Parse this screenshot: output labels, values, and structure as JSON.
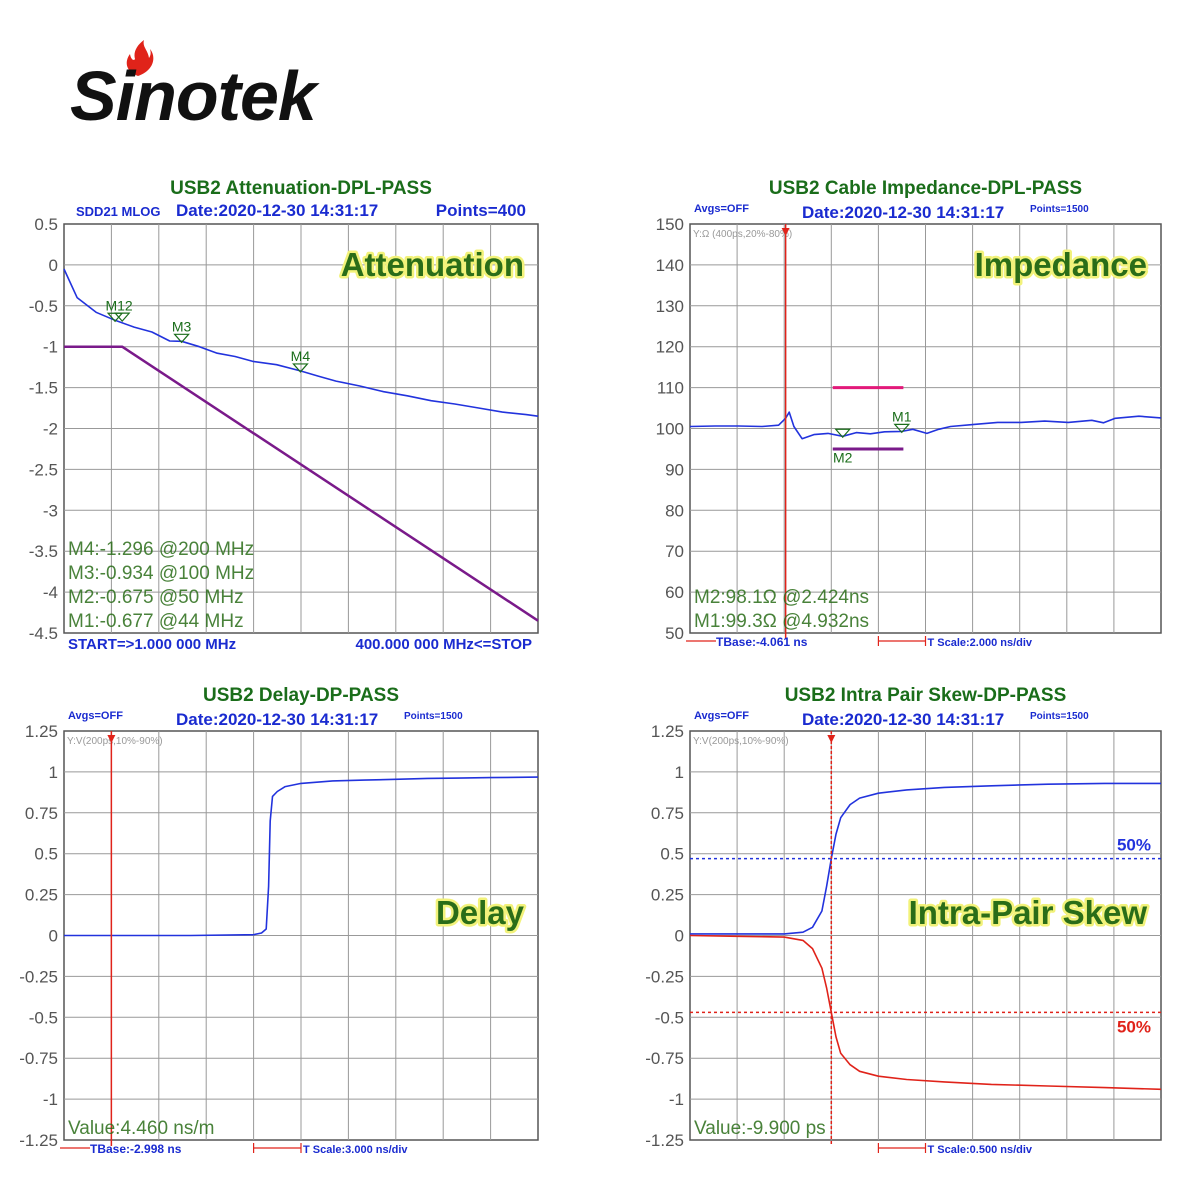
{
  "logo": {
    "brand": "Sinotek",
    "flame_color": "#e0231a"
  },
  "colors": {
    "title": "#1a6d1a",
    "meta": "#1a2bd0",
    "blue": "#2233dd",
    "purple": "#7a1a8a",
    "red": "#e0231a",
    "magenta": "#e21a7a",
    "marker_text": "#1a6d1a",
    "overlay_text": "#2a6d18",
    "overlay_glow": "#f2f27a"
  },
  "chart_data": [
    {
      "id": "attenuation",
      "type": "line",
      "title": "USB2 Attenuation-DPL-PASS",
      "top_left": "SDD21 MLOG",
      "date": "Date:2020-12-30 14:31:17",
      "points_label": "Points=400",
      "overlay_label": "Attenuation",
      "yticks": [
        "0.5",
        "0",
        "-0.5",
        "-1",
        "-1.5",
        "-2",
        "-2.5",
        "-3",
        "-3.5",
        "-4",
        "-4.5"
      ],
      "ylim": [
        -4.5,
        0.5
      ],
      "xlim": [
        1,
        400
      ],
      "series": [
        {
          "color": "#2233dd",
          "x": [
            1,
            12,
            28,
            44,
            60,
            75,
            90,
            100,
            115,
            130,
            145,
            160,
            180,
            200,
            215,
            230,
            250,
            270,
            290,
            310,
            330,
            350,
            370,
            390,
            400
          ],
          "y": [
            -0.05,
            -0.4,
            -0.58,
            -0.677,
            -0.76,
            -0.82,
            -0.93,
            -0.934,
            -1.0,
            -1.08,
            -1.12,
            -1.18,
            -1.22,
            -1.296,
            -1.36,
            -1.42,
            -1.48,
            -1.55,
            -1.6,
            -1.66,
            -1.7,
            -1.75,
            -1.8,
            -1.83,
            -1.85
          ]
        },
        {
          "color": "#7a1a8a",
          "x": [
            1,
            50,
            400
          ],
          "y": [
            -1.0,
            -1.0,
            -4.35
          ]
        }
      ],
      "markers": [
        {
          "label": "M1",
          "x": 44,
          "y": -0.677
        },
        {
          "label": "M2",
          "x": 50,
          "y": -0.675
        },
        {
          "label": "M3",
          "x": 100,
          "y": -0.934
        },
        {
          "label": "M4",
          "x": 200,
          "y": -1.296
        }
      ],
      "marker_caption": "M12",
      "readouts": [
        "M4:-1.296 @200 MHz",
        "M3:-0.934 @100 MHz",
        "M2:-0.675 @50 MHz",
        "M1:-0.677 @44 MHz"
      ],
      "bottom_left": "START=>1.000 000 MHz",
      "bottom_right": "400.000 000 MHz<=STOP"
    },
    {
      "id": "impedance",
      "type": "line",
      "title": "USB2 Cable Impedance-DPL-PASS",
      "avgs": "Avgs=OFF",
      "date": "Date:2020-12-30 14:31:17",
      "points_label": "Points=1500",
      "yaxis_note": "Y:Ω (400ps,20%-80%)",
      "overlay_label": "Impedance",
      "yticks": [
        "150",
        "140",
        "130",
        "120",
        "110",
        "100",
        "90",
        "80",
        "70",
        "60",
        "50"
      ],
      "ylim": [
        50,
        150
      ],
      "xlim": [
        -4.061,
        15.939
      ],
      "cursor_x": 0,
      "limit_lines": [
        {
          "color": "#e21a7a",
          "x0": 2.0,
          "x1": 5.0,
          "y": 110
        },
        {
          "color": "#7a1a8a",
          "x0": 2.0,
          "x1": 5.0,
          "y": 95
        }
      ],
      "series": [
        {
          "color": "#2233dd",
          "x": [
            -4.061,
            -3,
            -2,
            -1,
            -0.3,
            0,
            0.15,
            0.35,
            0.7,
            1.2,
            1.8,
            2.424,
            3,
            3.6,
            4.2,
            4.932,
            5.4,
            6,
            6.5,
            7,
            8,
            9,
            10,
            11,
            12,
            13,
            13.5,
            14,
            15,
            15.939
          ],
          "y": [
            100.5,
            100.6,
            100.6,
            100.5,
            100.8,
            102.5,
            104,
            100.5,
            97.5,
            98.5,
            98.8,
            98.1,
            99,
            98.7,
            99.2,
            99.3,
            99.8,
            98.8,
            99.8,
            100.5,
            101,
            101.5,
            101.5,
            101.8,
            101.5,
            102,
            101.4,
            102.5,
            103,
            102.6
          ]
        }
      ],
      "markers": [
        {
          "label": "M1",
          "x": 4.932,
          "y": 99.3,
          "label_pos": "above"
        },
        {
          "label": "M2",
          "x": 2.424,
          "y": 98.1,
          "label_pos": "below"
        }
      ],
      "readouts": [
        "M2:98.1Ω @2.424ns",
        "M1:99.3Ω @4.932ns"
      ],
      "tbase": "TBase:-4.061 ns",
      "tscale": "T Scale:2.000 ns/div"
    },
    {
      "id": "delay",
      "type": "line",
      "title": "USB2 Delay-DP-PASS",
      "avgs": "Avgs=OFF",
      "date": "Date:2020-12-30 14:31:17",
      "points_label": "Points=1500",
      "yaxis_note": "Y:V(200ps,10%-90%)",
      "overlay_label": "Delay",
      "yticks": [
        "1.25",
        "1",
        "0.75",
        "0.5",
        "0.25",
        "0",
        "-0.25",
        "-0.5",
        "-0.75",
        "-1",
        "-1.25"
      ],
      "ylim": [
        -1.25,
        1.25
      ],
      "xlim": [
        -2.998,
        27.002
      ],
      "cursor_x": 0,
      "series": [
        {
          "color": "#2233dd",
          "x": [
            -2.998,
            0,
            5,
            9,
            9.5,
            9.8,
            9.95,
            10.05,
            10.2,
            10.5,
            11,
            12,
            14,
            16,
            18,
            20,
            22,
            24,
            27.002
          ],
          "y": [
            0,
            0,
            0,
            0.005,
            0.015,
            0.04,
            0.3,
            0.7,
            0.85,
            0.88,
            0.91,
            0.93,
            0.945,
            0.95,
            0.955,
            0.96,
            0.962,
            0.965,
            0.968
          ]
        }
      ],
      "readout": "Value:4.460 ns/m",
      "tbase": "TBase:-2.998 ns",
      "tscale": "T Scale:3.000 ns/div"
    },
    {
      "id": "skew",
      "type": "line",
      "title": "USB2 Intra Pair Skew-DP-PASS",
      "avgs": "Avgs=OFF",
      "date": "Date:2020-12-30 14:31:17",
      "points_label": "Points=1500",
      "yaxis_note": "Y:V(200ps,10%-90%)",
      "overlay_label": "Intra-Pair Skew",
      "yticks": [
        "1.25",
        "1",
        "0.75",
        "0.5",
        "0.25",
        "0",
        "-0.25",
        "-0.5",
        "-0.75",
        "-1",
        "-1.25"
      ],
      "ylim": [
        -1.25,
        1.25
      ],
      "xlim": [
        0,
        5
      ],
      "cursor_x": 1.5,
      "threshold_lines": [
        {
          "color": "#2233dd",
          "y": 0.47,
          "label": "50%"
        },
        {
          "color": "#e0231a",
          "y": -0.47,
          "label": "50%"
        }
      ],
      "series": [
        {
          "color": "#2233dd",
          "x": [
            0,
            0.5,
            1.0,
            1.2,
            1.3,
            1.4,
            1.45,
            1.5,
            1.55,
            1.6,
            1.7,
            1.8,
            2.0,
            2.3,
            2.7,
            3.2,
            3.8,
            4.4,
            5
          ],
          "y": [
            0.01,
            0.01,
            0.01,
            0.02,
            0.05,
            0.15,
            0.3,
            0.47,
            0.62,
            0.72,
            0.8,
            0.84,
            0.87,
            0.89,
            0.905,
            0.915,
            0.925,
            0.93,
            0.93
          ]
        },
        {
          "color": "#e0231a",
          "x": [
            0,
            0.5,
            1.0,
            1.2,
            1.3,
            1.4,
            1.45,
            1.5,
            1.55,
            1.6,
            1.7,
            1.8,
            2.0,
            2.3,
            2.7,
            3.2,
            3.8,
            4.4,
            5
          ],
          "y": [
            0,
            -0.005,
            -0.01,
            -0.03,
            -0.08,
            -0.2,
            -0.32,
            -0.47,
            -0.62,
            -0.72,
            -0.79,
            -0.83,
            -0.86,
            -0.88,
            -0.895,
            -0.91,
            -0.92,
            -0.93,
            -0.94
          ]
        }
      ],
      "readout": "Value:-9.900 ps",
      "tscale": "T Scale:0.500 ns/div"
    }
  ]
}
